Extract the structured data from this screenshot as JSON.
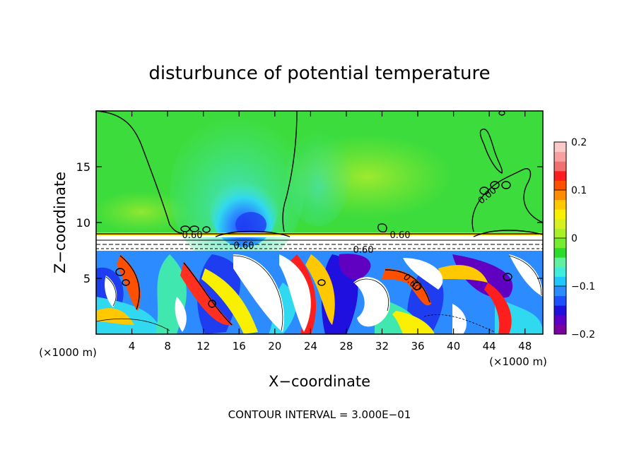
{
  "chart_data": {
    "type": "heatmap",
    "title": "disturbunce of potential temperature",
    "xlabel": "X−coordinate",
    "ylabel": "Z−coordinate",
    "x_unit_left": "(×1000 m)",
    "x_unit_right": "(×1000 m)",
    "xlim": [
      0,
      50
    ],
    "ylim": [
      0,
      20
    ],
    "x_ticks": [
      4,
      8,
      12,
      16,
      20,
      24,
      28,
      32,
      36,
      40,
      44,
      48
    ],
    "y_ticks": [
      5,
      10,
      15
    ],
    "colorbar": {
      "min": -0.2,
      "max": 0.2,
      "tick_values": [
        0.2,
        0.1,
        0,
        -0.1,
        -0.2
      ],
      "tick_labels": [
        "0.2",
        "0.1",
        "0",
        "−0.1",
        "−0.2"
      ],
      "colors": [
        "#7a00a0",
        "#5a00c8",
        "#2010e0",
        "#1e50ff",
        "#2c8cff",
        "#1ec8ff",
        "#40ecdc",
        "#60f0a0",
        "#2cdc2c",
        "#74ec30",
        "#a8f028",
        "#d8f020",
        "#f8f000",
        "#ffc800",
        "#ff8c00",
        "#ff5000",
        "#ff1e1e",
        "#f07070",
        "#f8a0a0",
        "#fcc8c8"
      ]
    },
    "contour_labels": [
      "0.60",
      "0.60",
      "0.60",
      "0.60",
      "0.00",
      "0.60"
    ],
    "contour_interval": "CONTOUR INTERVAL = 3.000E−01"
  }
}
